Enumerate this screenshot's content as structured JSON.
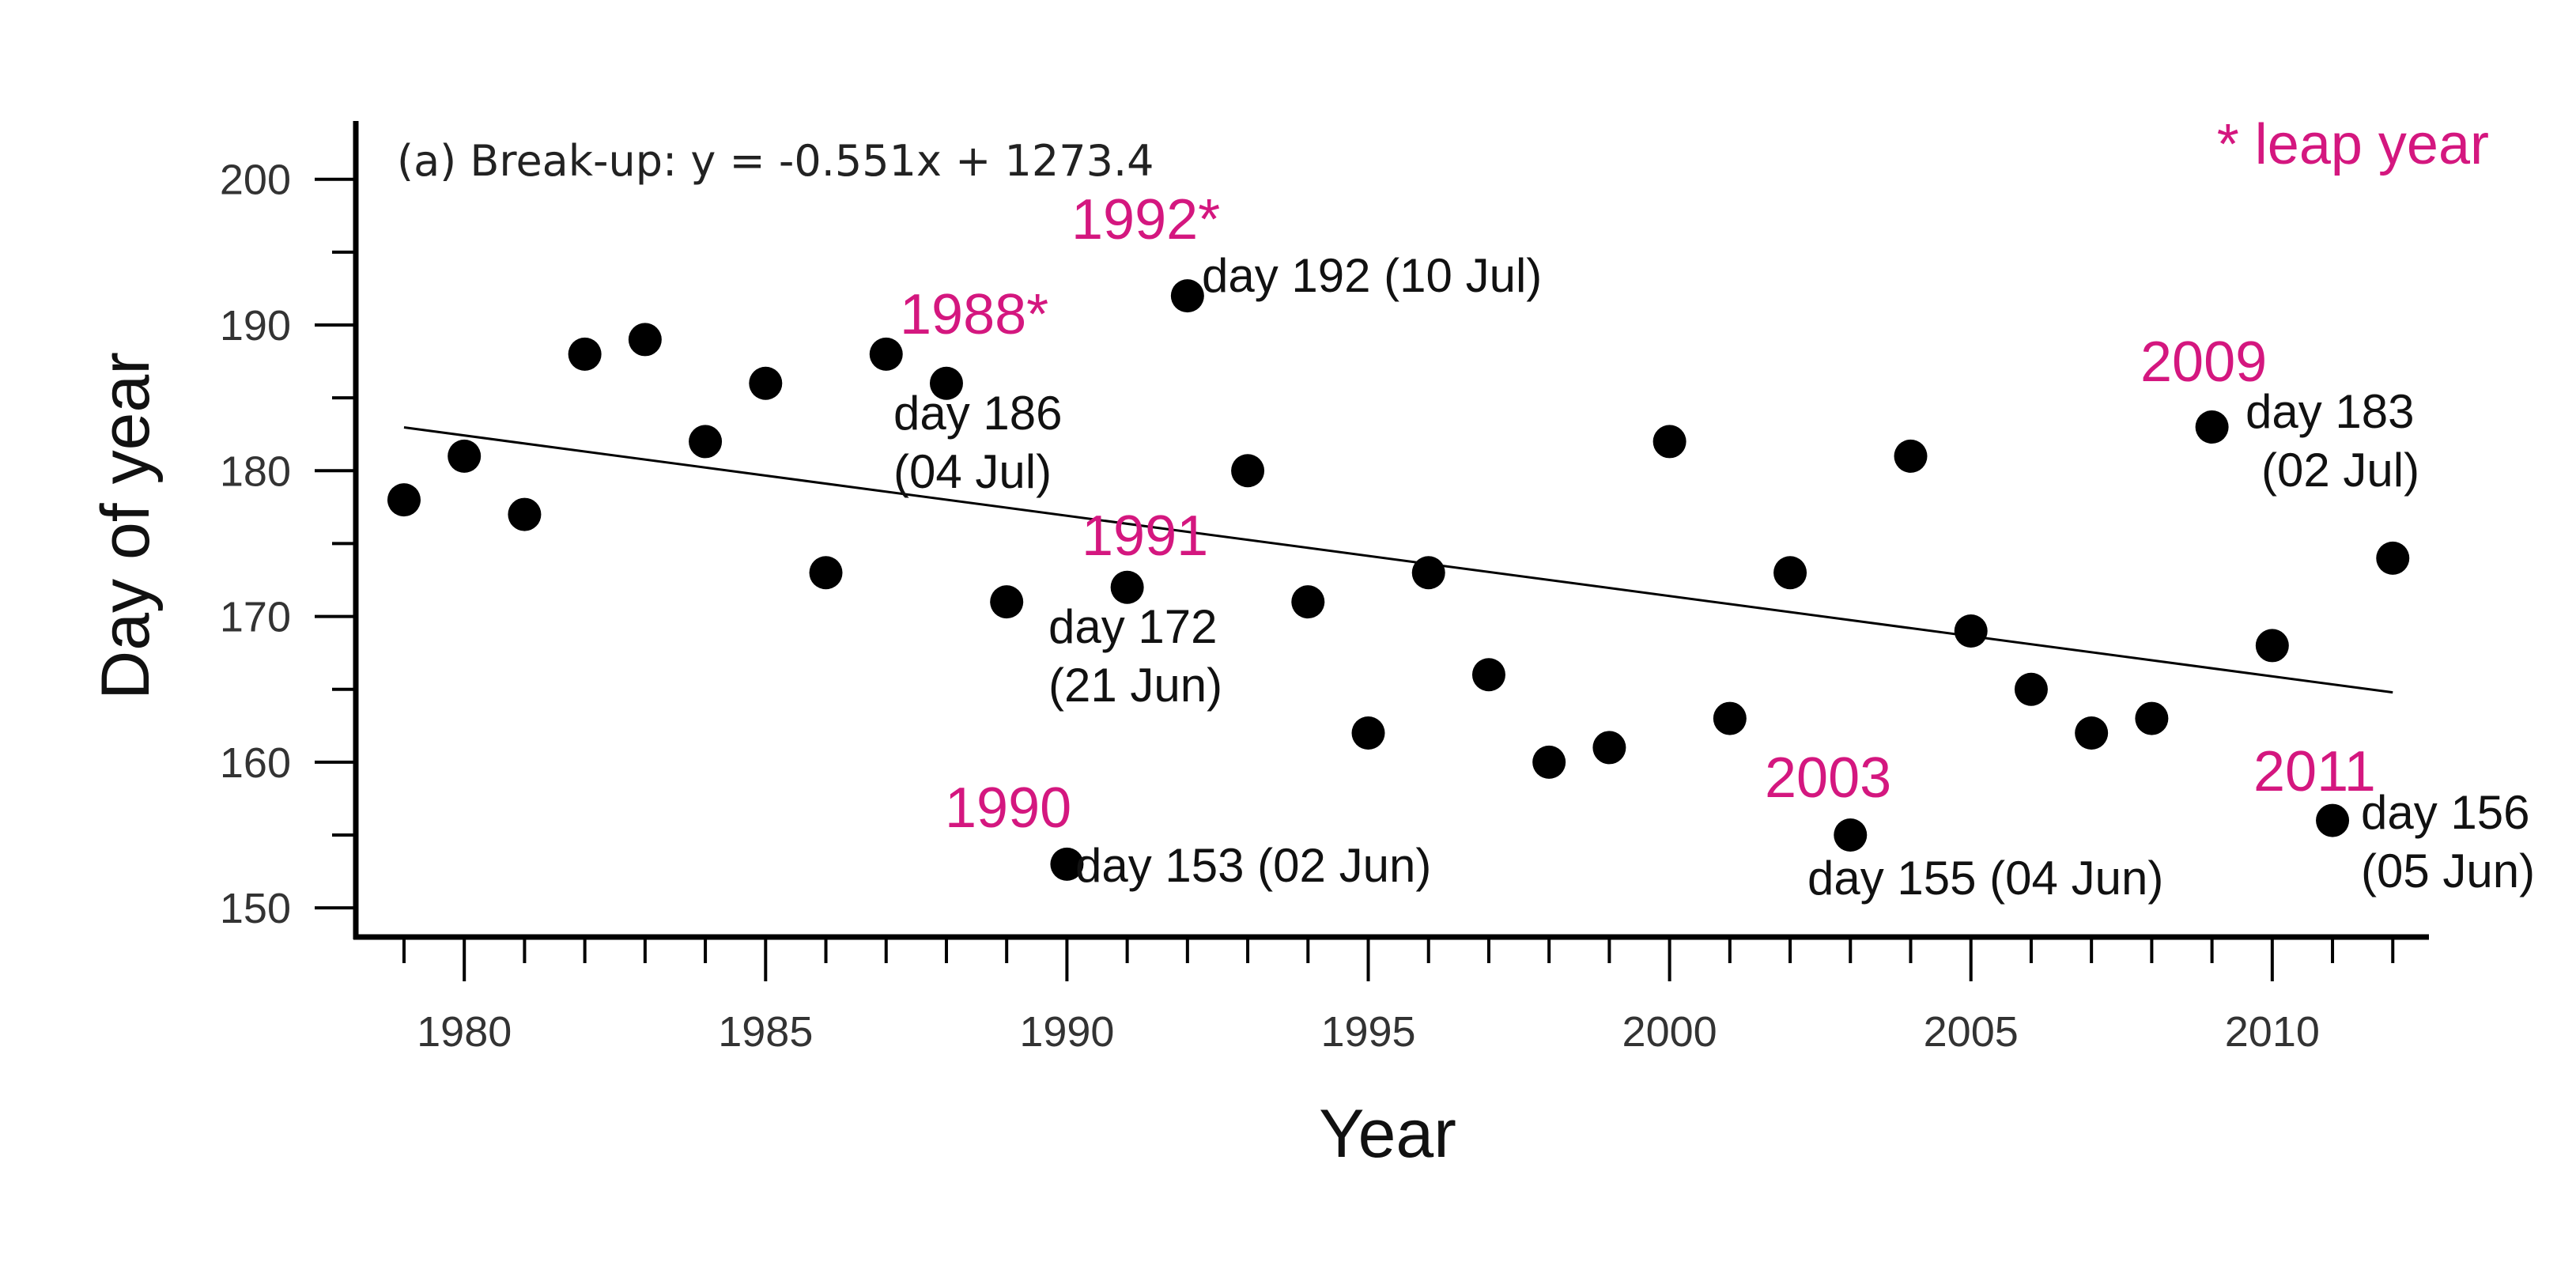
{
  "colors": {
    "highlight": "#d4177f",
    "point": "#000000",
    "text": "#222222"
  },
  "chart_data": {
    "type": "scatter",
    "title": "(a) Break-up: y = -0.551x + 1273.4",
    "xlabel": "Year",
    "ylabel": "Day of year",
    "xlim": [
      1978.2,
      2012.6
    ],
    "ylim": [
      148.0,
      204.0
    ],
    "xticks_major": [
      1980,
      1985,
      1990,
      1995,
      2000,
      2005,
      2010
    ],
    "xticks_minor": [
      1979,
      1981,
      1982,
      1983,
      1984,
      1986,
      1987,
      1988,
      1989,
      1991,
      1992,
      1993,
      1994,
      1996,
      1997,
      1998,
      1999,
      2001,
      2002,
      2003,
      2004,
      2006,
      2007,
      2008,
      2009,
      2011,
      2012
    ],
    "yticks_major": [
      150,
      160,
      170,
      180,
      190,
      200
    ],
    "yticks_minor": [
      155,
      165,
      175,
      185,
      195
    ],
    "points": [
      {
        "x": 1979,
        "y": 178
      },
      {
        "x": 1980,
        "y": 181
      },
      {
        "x": 1981,
        "y": 177
      },
      {
        "x": 1982,
        "y": 188
      },
      {
        "x": 1983,
        "y": 189
      },
      {
        "x": 1984,
        "y": 182
      },
      {
        "x": 1985,
        "y": 186
      },
      {
        "x": 1986,
        "y": 173
      },
      {
        "x": 1987,
        "y": 188
      },
      {
        "x": 1988,
        "y": 186
      },
      {
        "x": 1989,
        "y": 171
      },
      {
        "x": 1990,
        "y": 153
      },
      {
        "x": 1991,
        "y": 172
      },
      {
        "x": 1992,
        "y": 192
      },
      {
        "x": 1993,
        "y": 180
      },
      {
        "x": 1994,
        "y": 171
      },
      {
        "x": 1995,
        "y": 162
      },
      {
        "x": 1996,
        "y": 173
      },
      {
        "x": 1997,
        "y": 166
      },
      {
        "x": 1998,
        "y": 160
      },
      {
        "x": 1999,
        "y": 161
      },
      {
        "x": 2000,
        "y": 182
      },
      {
        "x": 2001,
        "y": 163
      },
      {
        "x": 2002,
        "y": 173
      },
      {
        "x": 2003,
        "y": 155
      },
      {
        "x": 2004,
        "y": 181
      },
      {
        "x": 2005,
        "y": 169
      },
      {
        "x": 2006,
        "y": 165
      },
      {
        "x": 2007,
        "y": 162
      },
      {
        "x": 2008,
        "y": 163
      },
      {
        "x": 2009,
        "y": 183
      },
      {
        "x": 2010,
        "y": 168
      },
      {
        "x": 2011,
        "y": 156
      },
      {
        "x": 2012,
        "y": 174
      }
    ],
    "trendline": {
      "slope": -0.551,
      "intercept": 1273.4,
      "x_start": 1979,
      "x_end": 2012
    },
    "annotations": [
      {
        "year": "1988*",
        "day_lines": [
          "day 186",
          "(04 Jul)"
        ]
      },
      {
        "year": "1992*",
        "day_lines": [
          "day 192 (10 Jul)"
        ]
      },
      {
        "year": "1991",
        "day_lines": [
          "day 172",
          "(21 Jun)"
        ]
      },
      {
        "year": "1990",
        "day_lines": [
          "day 153 (02 Jun)"
        ]
      },
      {
        "year": "2003",
        "day_lines": [
          "day 155 (04 Jun)"
        ]
      },
      {
        "year": "2009",
        "day_lines": [
          "day 183",
          "(02 Jul)"
        ]
      },
      {
        "year": "2011",
        "day_lines": [
          "day 156",
          "(05 Jun)"
        ]
      }
    ],
    "legend_note": "* leap year"
  }
}
